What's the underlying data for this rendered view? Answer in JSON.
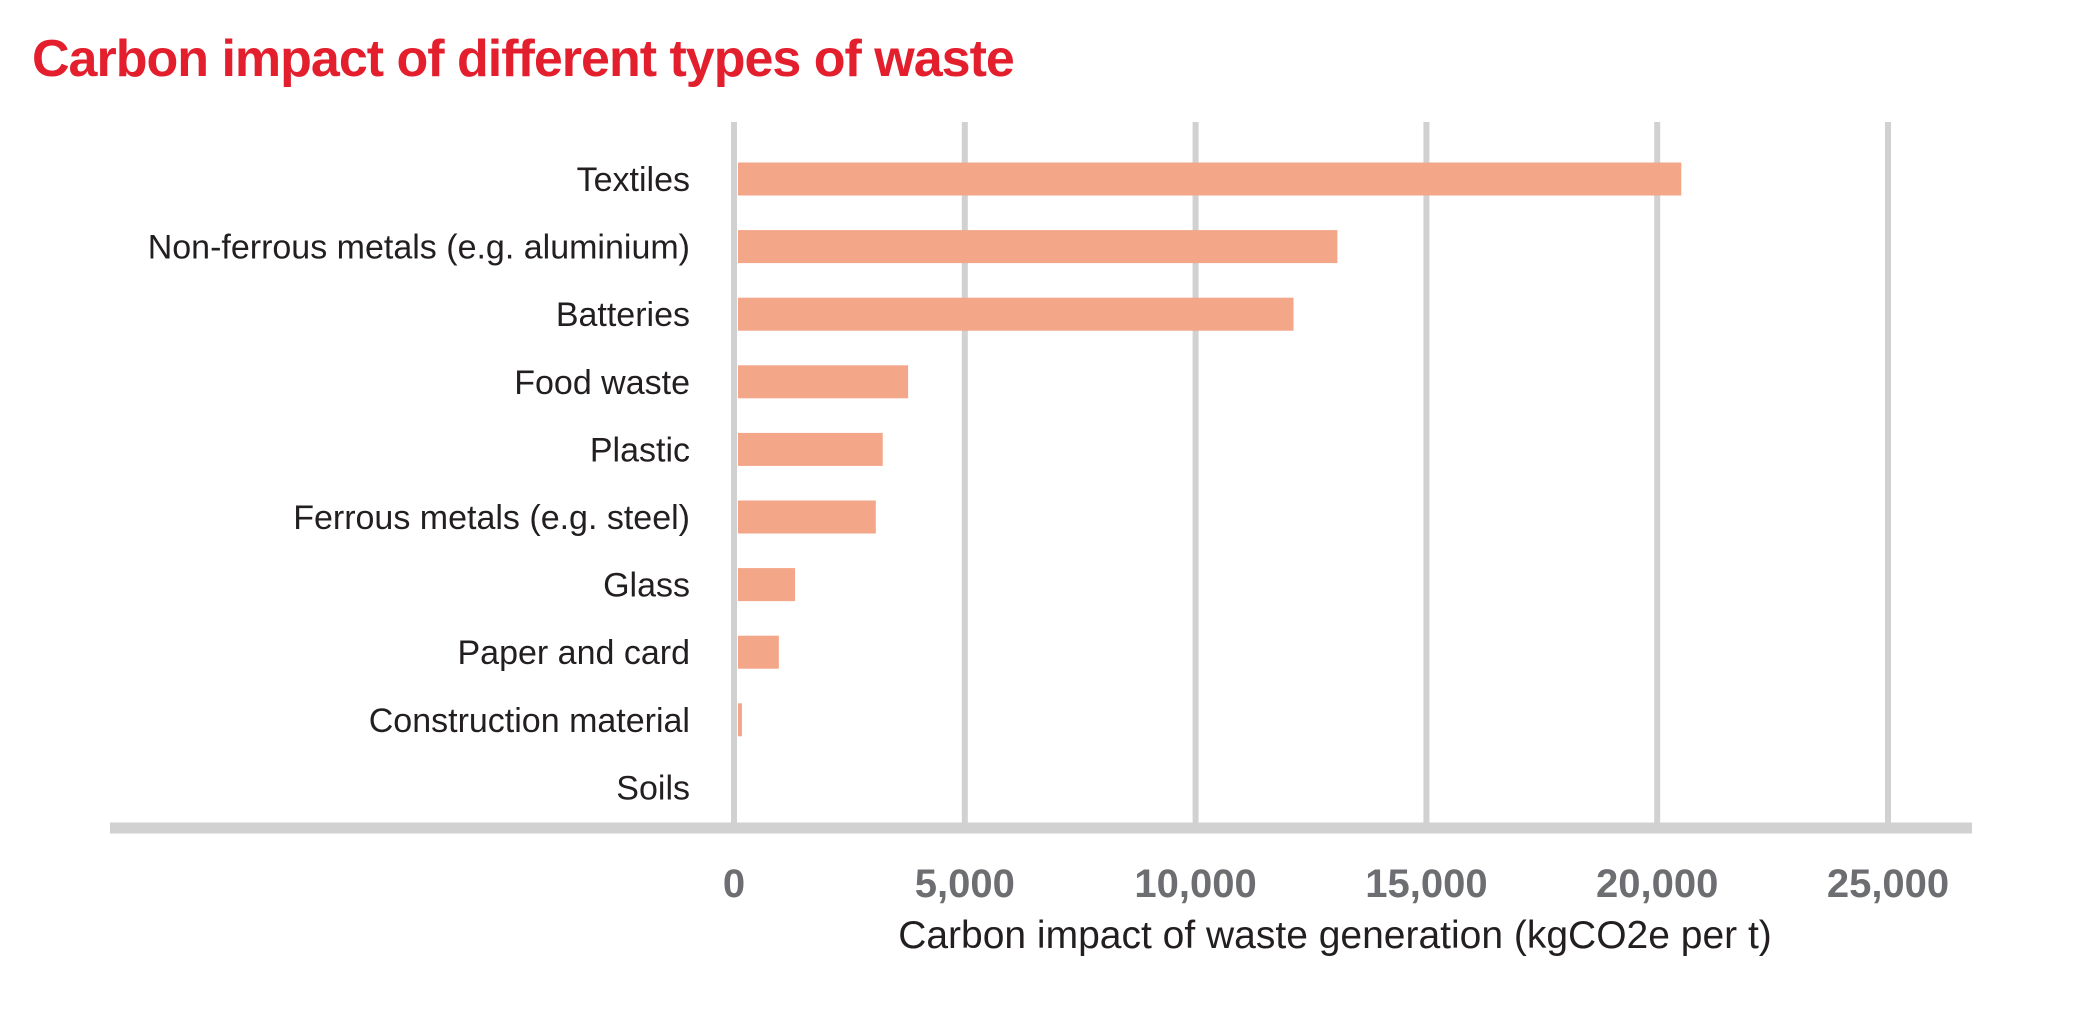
{
  "title": "Carbon impact of different types of waste",
  "colors": {
    "title": "#e31e2d",
    "bar": "#f4a688",
    "grid": "#d1d1d1",
    "tick_label": "#6d6e71",
    "text": "#231f20"
  },
  "chart_data": {
    "type": "bar",
    "orientation": "horizontal",
    "title": "Carbon impact of different types of waste",
    "xlabel": "Carbon impact of waste generation (kgCO2e per t)",
    "ylabel": "",
    "categories": [
      "Textiles",
      "Non-ferrous metals (e.g. aluminium)",
      "Batteries",
      "Food waste",
      "Plastic",
      "Ferrous metals (e.g. steel)",
      "Glass",
      "Paper and card",
      "Construction material",
      "Soils"
    ],
    "values": [
      20500,
      13050,
      12100,
      3750,
      3200,
      3050,
      1300,
      950,
      150,
      0
    ],
    "xlim": [
      0,
      25000
    ],
    "xticks": [
      0,
      5000,
      10000,
      15000,
      20000,
      25000
    ],
    "xtick_labels": [
      "0",
      "5,000",
      "10,000",
      "15,000",
      "20,000",
      "25,000"
    ],
    "grid": true,
    "legend": "none"
  }
}
